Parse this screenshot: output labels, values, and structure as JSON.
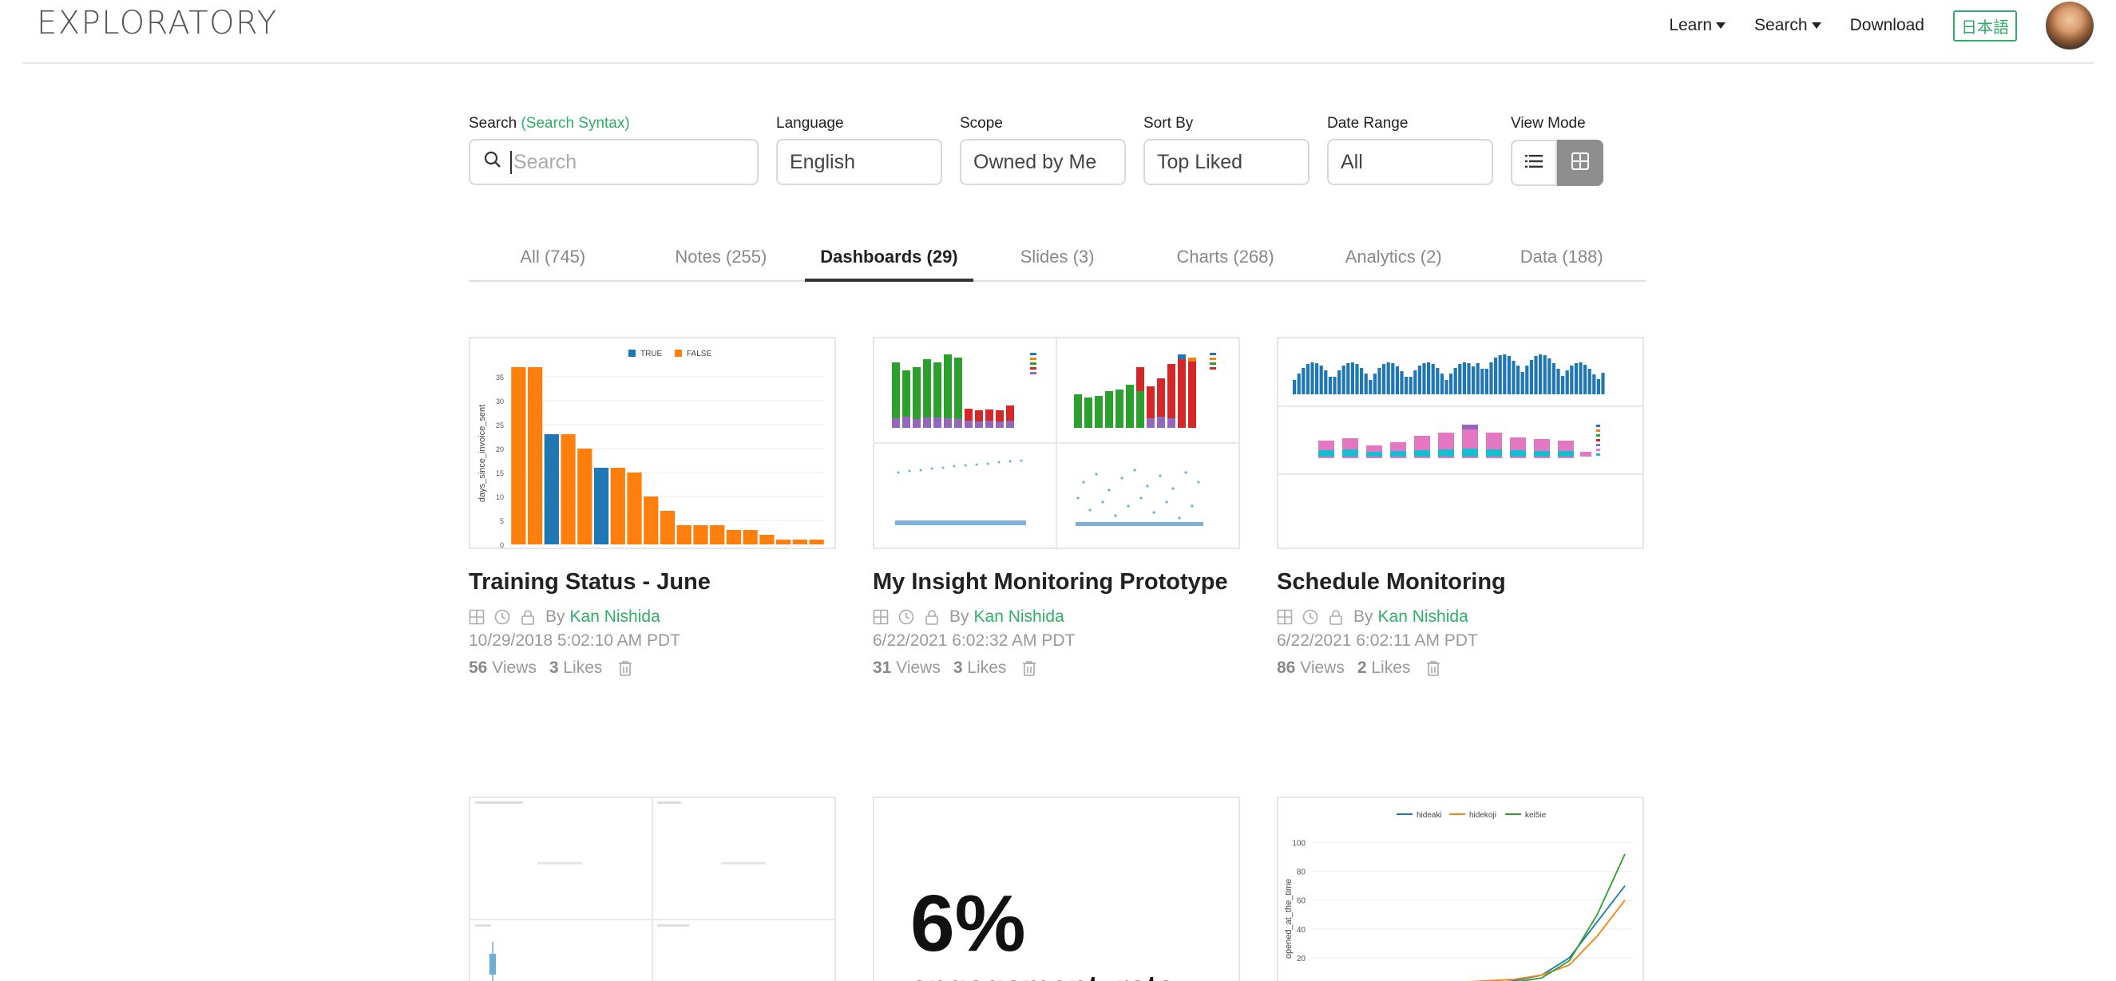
{
  "header": {
    "logo": "EXPLORATORY",
    "nav": {
      "learn": "Learn",
      "search": "Search",
      "download": "Download",
      "language_toggle": "日本語"
    }
  },
  "filters": {
    "search": {
      "label": "Search",
      "syntax_link": "(Search Syntax)",
      "placeholder": "Search"
    },
    "language": {
      "label": "Language",
      "value": "English"
    },
    "scope": {
      "label": "Scope",
      "value": "Owned by Me"
    },
    "sort_by": {
      "label": "Sort By",
      "value": "Top Liked"
    },
    "date_range": {
      "label": "Date Range",
      "value": "All"
    },
    "view_mode": {
      "label": "View Mode",
      "active": "grid"
    }
  },
  "tabs": [
    {
      "label": "All (745)"
    },
    {
      "label": "Notes (255)"
    },
    {
      "label": "Dashboards (29)",
      "active": true
    },
    {
      "label": "Slides (3)"
    },
    {
      "label": "Charts (268)"
    },
    {
      "label": "Analytics (2)"
    },
    {
      "label": "Data (188)"
    }
  ],
  "cards": [
    {
      "title": "Training Status - June",
      "by": "By",
      "author": "Kan Nishida",
      "date": "10/29/2018 5:02:10 AM PDT",
      "views": "56",
      "views_label": "Views",
      "likes": "3",
      "likes_label": "Likes"
    },
    {
      "title": "My Insight Monitoring Prototype",
      "by": "By",
      "author": "Kan Nishida",
      "date": "6/22/2021 6:02:32 AM PDT",
      "views": "31",
      "views_label": "Views",
      "likes": "3",
      "likes_label": "Likes"
    },
    {
      "title": "Schedule Monitoring",
      "by": "By",
      "author": "Kan Nishida",
      "date": "6/22/2021 6:02:11 AM PDT",
      "views": "86",
      "views_label": "Views",
      "likes": "2",
      "likes_label": "Likes"
    }
  ],
  "second_row": {
    "kpi": {
      "value": "6%",
      "label": "engagement_rate"
    },
    "line_chart": {
      "ylabel": "opened_at_the_time",
      "legend": [
        "hideaki",
        "hidekoji",
        "kei5ie"
      ],
      "yticks": [
        "100",
        "80",
        "60",
        "40",
        "20"
      ]
    }
  },
  "chart_data": [
    {
      "type": "bar",
      "ylabel": "days_since_invoice_sent",
      "legend": [
        "TRUE",
        "FALSE"
      ],
      "ylim": [
        0,
        38
      ],
      "yticks": [
        0,
        5,
        10,
        15,
        20,
        25,
        30,
        35
      ],
      "values": [
        37,
        37,
        23,
        23,
        20,
        16,
        16,
        15,
        10,
        7,
        4,
        4,
        4,
        3,
        3,
        2,
        1,
        1,
        1
      ],
      "series_flags": [
        "FALSE",
        "FALSE",
        "TRUE",
        "FALSE",
        "FALSE",
        "TRUE",
        "FALSE",
        "FALSE",
        "FALSE",
        "FALSE",
        "FALSE",
        "FALSE",
        "FALSE",
        "FALSE",
        "FALSE",
        "FALSE",
        "FALSE",
        "FALSE",
        "FALSE"
      ]
    },
    {
      "type": "line",
      "ylabel": "opened_at_the_time",
      "legend": [
        "hideaki",
        "hidekoji",
        "kei5ie"
      ],
      "ylim": [
        0,
        100
      ],
      "series": [
        {
          "name": "hideaki",
          "values": [
            0,
            0,
            0,
            1,
            1,
            2,
            2,
            4,
            8,
            20,
            45,
            70
          ]
        },
        {
          "name": "hidekoji",
          "values": [
            0,
            0,
            1,
            2,
            2,
            3,
            4,
            5,
            8,
            15,
            35,
            60
          ]
        },
        {
          "name": "kei5ie",
          "values": [
            0,
            0,
            0,
            1,
            1,
            1,
            2,
            3,
            6,
            18,
            50,
            92
          ]
        }
      ]
    }
  ],
  "colors": {
    "accent": "#2eae67",
    "bar_true": "#1f77b4",
    "bar_false": "#ff7f0e",
    "line_1": "#1f77b4",
    "line_2": "#ff7f0e",
    "line_3": "#2ca02c"
  }
}
